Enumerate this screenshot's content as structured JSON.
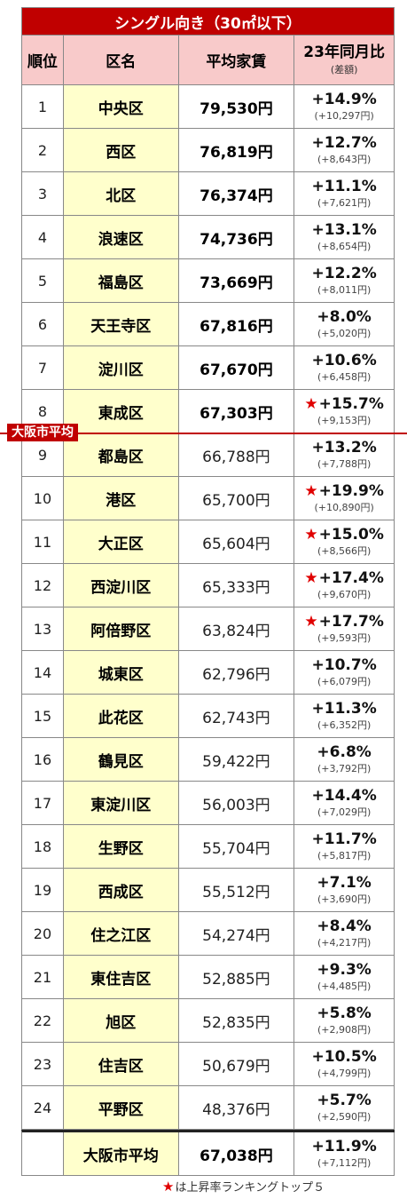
{
  "title": "シングル向き（30㎡以下）",
  "headers": {
    "rank": "順位",
    "ward": "区名",
    "rent": "平均家賃",
    "yoy": "23年同月比",
    "yoy_sub": "(差額)"
  },
  "rows": [
    {
      "rank": "1",
      "ward": "中央区",
      "rent": "79,530円",
      "change": "+14.9%",
      "diff": "(+10,297円)",
      "star": false,
      "above_avg": true
    },
    {
      "rank": "2",
      "ward": "西区",
      "rent": "76,819円",
      "change": "+12.7%",
      "diff": "(+8,643円)",
      "star": false,
      "above_avg": true
    },
    {
      "rank": "3",
      "ward": "北区",
      "rent": "76,374円",
      "change": "+11.1%",
      "diff": "(+7,621円)",
      "star": false,
      "above_avg": true
    },
    {
      "rank": "4",
      "ward": "浪速区",
      "rent": "74,736円",
      "change": "+13.1%",
      "diff": "(+8,654円)",
      "star": false,
      "above_avg": true
    },
    {
      "rank": "5",
      "ward": "福島区",
      "rent": "73,669円",
      "change": "+12.2%",
      "diff": "(+8,011円)",
      "star": false,
      "above_avg": true
    },
    {
      "rank": "6",
      "ward": "天王寺区",
      "rent": "67,816円",
      "change": "+8.0%",
      "diff": "(+5,020円)",
      "star": false,
      "above_avg": true
    },
    {
      "rank": "7",
      "ward": "淀川区",
      "rent": "67,670円",
      "change": "+10.6%",
      "diff": "(+6,458円)",
      "star": false,
      "above_avg": true
    },
    {
      "rank": "8",
      "ward": "東成区",
      "rent": "67,303円",
      "change": "+15.7%",
      "diff": "(+9,153円)",
      "star": true,
      "above_avg": true
    },
    {
      "rank": "9",
      "ward": "都島区",
      "rent": "66,788円",
      "change": "+13.2%",
      "diff": "(+7,788円)",
      "star": false,
      "above_avg": false
    },
    {
      "rank": "10",
      "ward": "港区",
      "rent": "65,700円",
      "change": "+19.9%",
      "diff": "(+10,890円)",
      "star": true,
      "above_avg": false
    },
    {
      "rank": "11",
      "ward": "大正区",
      "rent": "65,604円",
      "change": "+15.0%",
      "diff": "(+8,566円)",
      "star": true,
      "above_avg": false
    },
    {
      "rank": "12",
      "ward": "西淀川区",
      "rent": "65,333円",
      "change": "+17.4%",
      "diff": "(+9,670円)",
      "star": true,
      "above_avg": false
    },
    {
      "rank": "13",
      "ward": "阿倍野区",
      "rent": "63,824円",
      "change": "+17.7%",
      "diff": "(+9,593円)",
      "star": true,
      "above_avg": false
    },
    {
      "rank": "14",
      "ward": "城東区",
      "rent": "62,796円",
      "change": "+10.7%",
      "diff": "(+6,079円)",
      "star": false,
      "above_avg": false
    },
    {
      "rank": "15",
      "ward": "此花区",
      "rent": "62,743円",
      "change": "+11.3%",
      "diff": "(+6,352円)",
      "star": false,
      "above_avg": false
    },
    {
      "rank": "16",
      "ward": "鶴見区",
      "rent": "59,422円",
      "change": "+6.8%",
      "diff": "(+3,792円)",
      "star": false,
      "above_avg": false
    },
    {
      "rank": "17",
      "ward": "東淀川区",
      "rent": "56,003円",
      "change": "+14.4%",
      "diff": "(+7,029円)",
      "star": false,
      "above_avg": false
    },
    {
      "rank": "18",
      "ward": "生野区",
      "rent": "55,704円",
      "change": "+11.7%",
      "diff": "(+5,817円)",
      "star": false,
      "above_avg": false
    },
    {
      "rank": "19",
      "ward": "西成区",
      "rent": "55,512円",
      "change": "+7.1%",
      "diff": "(+3,690円)",
      "star": false,
      "above_avg": false
    },
    {
      "rank": "20",
      "ward": "住之江区",
      "rent": "54,274円",
      "change": "+8.4%",
      "diff": "(+4,217円)",
      "star": false,
      "above_avg": false
    },
    {
      "rank": "21",
      "ward": "東住吉区",
      "rent": "52,885円",
      "change": "+9.3%",
      "diff": "(+4,485円)",
      "star": false,
      "above_avg": false
    },
    {
      "rank": "22",
      "ward": "旭区",
      "rent": "52,835円",
      "change": "+5.8%",
      "diff": "(+2,908円)",
      "star": false,
      "above_avg": false
    },
    {
      "rank": "23",
      "ward": "住吉区",
      "rent": "50,679円",
      "change": "+10.5%",
      "diff": "(+4,799円)",
      "star": false,
      "above_avg": false
    },
    {
      "rank": "24",
      "ward": "平野区",
      "rent": "48,376円",
      "change": "+5.7%",
      "diff": "(+2,590円)",
      "star": false,
      "above_avg": false
    }
  ],
  "average": {
    "label": "大阪市平均",
    "rent": "67,038円",
    "change": "+11.9%",
    "diff": "(+7,112円)"
  },
  "avg_marker_label": "大阪市平均",
  "star_glyph": "★",
  "footer_note": "は上昇率ランキングトップ５",
  "colors": {
    "accent_red": "#c00000",
    "header_pink": "#f8caca",
    "ward_yellow": "#ffffcc",
    "star_red": "#e00000"
  }
}
